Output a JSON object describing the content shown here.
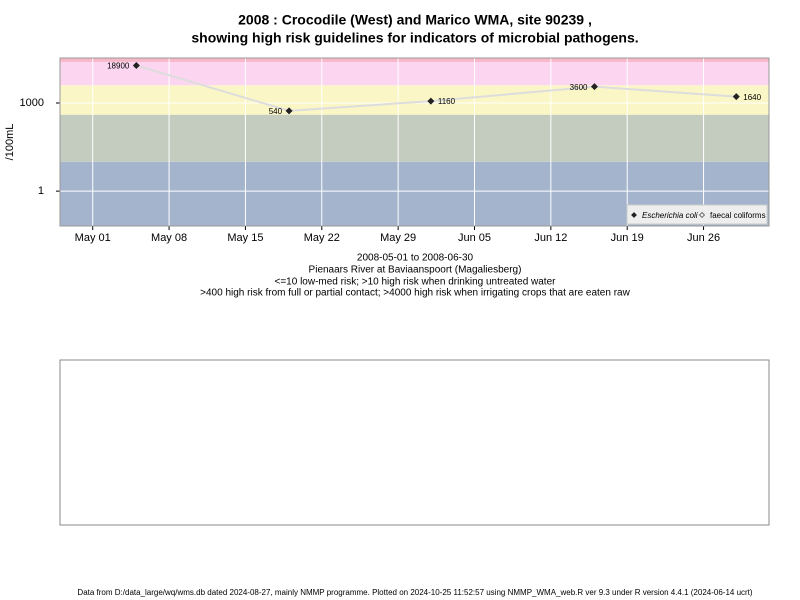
{
  "chart_data": {
    "type": "line",
    "title": [
      "2008 : Crocodile (West) and Marico WMA, site 90239 ,",
      "showing high risk guidelines for indicators of microbial pathogens."
    ],
    "y_label": "/100mL",
    "x": [
      "2008-05-05",
      "2008-05-19",
      "2008-06-01",
      "2008-06-16",
      "2008-06-29"
    ],
    "series": [
      {
        "name": "Escherichia coli",
        "color": "#222222",
        "line_color": "#dddddd",
        "values": [
          18900,
          540,
          1160,
          3600,
          1640
        ]
      },
      {
        "name": "faecal coliforms",
        "color": "#222222",
        "values": [
          null,
          null,
          null,
          null,
          null
        ]
      }
    ],
    "xlim": [
      "2008-04-28",
      "2008-07-02"
    ],
    "xticks": [
      {
        "value": "2008-05-01",
        "label": "May 01"
      },
      {
        "value": "2008-05-08",
        "label": "May 08"
      },
      {
        "value": "2008-05-15",
        "label": "May 15"
      },
      {
        "value": "2008-05-22",
        "label": "May 22"
      },
      {
        "value": "2008-05-29",
        "label": "May 29"
      },
      {
        "value": "2008-06-05",
        "label": "Jun 05"
      },
      {
        "value": "2008-06-12",
        "label": "Jun 12"
      },
      {
        "value": "2008-06-19",
        "label": "Jun 19"
      },
      {
        "value": "2008-06-26",
        "label": "Jun 26"
      }
    ],
    "ylim": [
      0.065,
      34000
    ],
    "yticks": [
      1,
      1000
    ],
    "log_y": true,
    "grid": true,
    "bands": [
      {
        "from": 0.065,
        "to": 10,
        "color": "#a3b4cc"
      },
      {
        "from": 10,
        "to": 400,
        "color": "#c4ccc0"
      },
      {
        "from": 400,
        "to": 4000,
        "color": "#fbf6c6"
      },
      {
        "from": 4000,
        "to": 25000,
        "color": "#fcd6f0"
      },
      {
        "from": 25000,
        "to": 34000,
        "color": "#f8b7c8"
      }
    ],
    "legend": "bottom-right",
    "caption": [
      "2008-05-01 to 2008-06-30",
      "Pienaars River at Baviaanspoort (Magaliesberg)",
      "<=10 low-med risk; >10 high risk when drinking untreated water",
      ">400 high risk from full or partial contact; >4000 high risk when irrigating crops that are eaten raw"
    ],
    "footer": "Data from D:/data_large/wq/wms.db dated 2024-08-27, mainly NMMP programme. Plotted on 2024-10-25 11:52:57 using NMMP_WMA_web.R ver 9.3 under R version 4.4.1 (2024-06-14 ucrt)"
  }
}
